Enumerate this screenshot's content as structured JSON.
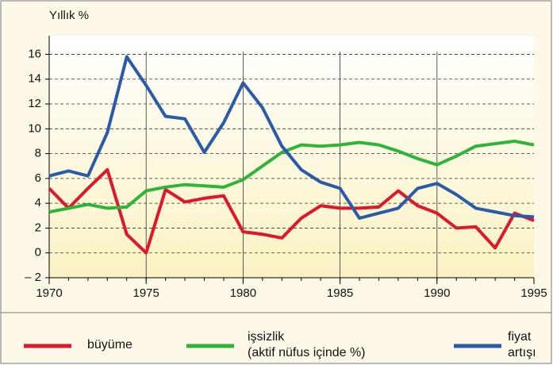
{
  "chart_data": {
    "type": "line",
    "y_label": "Yıllık %",
    "x": [
      1970,
      1971,
      1972,
      1973,
      1974,
      1975,
      1976,
      1977,
      1978,
      1979,
      1980,
      1981,
      1982,
      1983,
      1984,
      1985,
      1986,
      1987,
      1988,
      1989,
      1990,
      1991,
      1992,
      1993,
      1994,
      1995
    ],
    "xlim": [
      1970,
      1995
    ],
    "xticks": [
      1970,
      1975,
      1980,
      1985,
      1990,
      1995
    ],
    "ylim": [
      -2,
      17.5
    ],
    "yticks": [
      {
        "value": -2,
        "label": "– 2"
      },
      0,
      2,
      4,
      6,
      8,
      10,
      12,
      14,
      16
    ],
    "grid": true,
    "series": [
      {
        "name": "büyüme",
        "color": "#e0162b",
        "values": [
          5.2,
          3.6,
          5.2,
          6.7,
          1.5,
          0.0,
          5.1,
          4.1,
          4.4,
          4.6,
          1.7,
          1.5,
          1.2,
          2.8,
          3.8,
          3.6,
          3.6,
          3.7,
          5.0,
          3.8,
          3.2,
          2.0,
          2.1,
          0.4,
          3.2,
          2.6
        ]
      },
      {
        "name": "işsizlik\n(aktif nüfus içinde %)",
        "color": "#2db53a",
        "values": [
          3.3,
          3.6,
          3.9,
          3.6,
          3.7,
          5.0,
          5.3,
          5.5,
          5.4,
          5.3,
          5.9,
          7.0,
          8.1,
          8.7,
          8.6,
          8.7,
          8.9,
          8.7,
          8.2,
          7.6,
          7.1,
          7.8,
          8.6,
          8.8,
          9.0,
          8.7
        ]
      },
      {
        "name": "fiyat\nartışı",
        "color": "#2a5aa8",
        "values": [
          6.2,
          6.6,
          6.2,
          9.7,
          15.8,
          13.5,
          11.0,
          10.8,
          8.1,
          10.5,
          13.7,
          11.7,
          8.6,
          6.7,
          5.7,
          5.2,
          2.8,
          3.2,
          3.6,
          5.2,
          5.6,
          4.7,
          3.6,
          3.3,
          3.0,
          2.9
        ]
      }
    ]
  }
}
